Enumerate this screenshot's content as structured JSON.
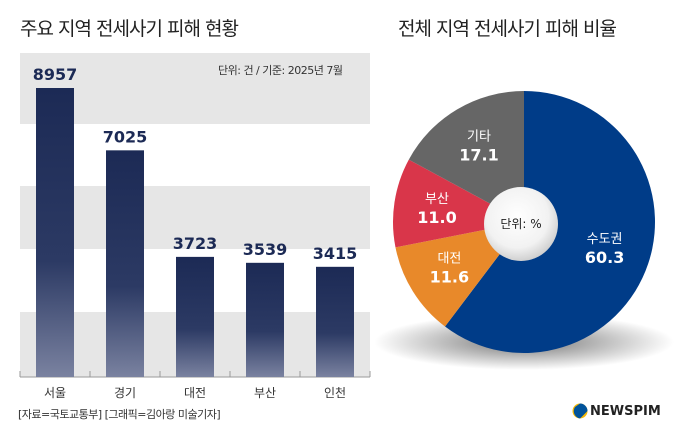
{
  "chart_data": [
    {
      "type": "bar",
      "title": "주요 지역 전세사기 피해 현황",
      "unit_note": "단위: 건 / 기준: 2025년 7월",
      "categories": [
        "서울",
        "경기",
        "대전",
        "부산",
        "인천"
      ],
      "values": [
        8957,
        7025,
        3723,
        3539,
        3415
      ],
      "ylim": [
        0,
        9000
      ],
      "colors": {
        "bar_top": "#1c2a55",
        "bar_bottom": "#7a82a0",
        "band": "#e6e6e6"
      }
    },
    {
      "type": "pie",
      "title": "전체 지역 전세사기 피해 비율",
      "center_label": "단위: %",
      "slices": [
        {
          "label": "수도권",
          "value": 60.3,
          "color": "#003c88"
        },
        {
          "label": "대전",
          "value": 11.6,
          "color": "#e8892a"
        },
        {
          "label": "부산",
          "value": 11.0,
          "color": "#d9364a"
        },
        {
          "label": "기타",
          "value": 17.1,
          "color": "#666666"
        }
      ]
    }
  ],
  "footer": {
    "source": "[자료=국토교통부] [그래픽=김아랑 미술기자]",
    "brand": "NEWSPIM"
  }
}
